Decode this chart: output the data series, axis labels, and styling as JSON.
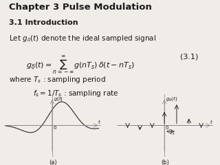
{
  "title": "Chapter 3 Pulse Modulation",
  "subtitle": "3.1 Introduction",
  "line1": "Let $g_{\\delta}(t)$ denote the ideal sampled signal",
  "equation": "$g_{\\delta}(t) = \\sum_{n=-\\infty}^{\\infty} g(nT_s)\\, \\delta(t - nT_s)$",
  "eq_number": "(3.1)",
  "line3": "where $T_s$ : sampling period",
  "line4": "$f_s = 1/T_s$ : sampling rate",
  "label_a": "(a)",
  "label_b": "(b)",
  "bg_color": "#f0ede8",
  "text_color": "#1a1a1a",
  "curve_color": "#2a2a2a",
  "arrow_color": "#2a2a2a"
}
